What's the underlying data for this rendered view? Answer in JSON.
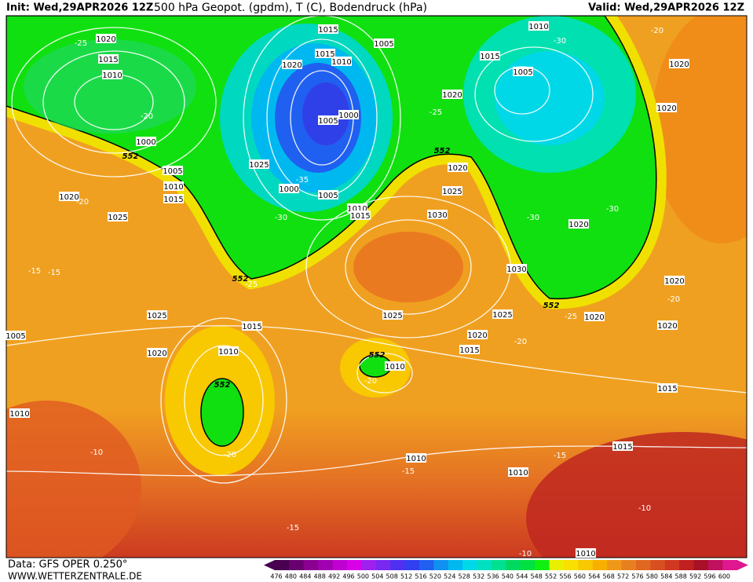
{
  "header": {
    "init": "Init: Wed,29APR2026 12Z",
    "title": "500 hPa Geopot. (gpdm), T (C), Bodendruck (hPa)",
    "valid": "Valid: Wed,29APR2026 12Z"
  },
  "footer": {
    "data": "Data: GFS OPER 0.250°",
    "url": "WWW.WETTERZENTRALE.DE"
  },
  "colorbar": {
    "ticks": [
      476,
      480,
      484,
      488,
      492,
      496,
      500,
      504,
      508,
      512,
      516,
      520,
      524,
      528,
      532,
      536,
      540,
      544,
      548,
      552,
      556,
      560,
      564,
      568,
      572,
      576,
      580,
      584,
      588,
      592,
      596,
      600
    ],
    "colors": [
      "#4a0050",
      "#6a0070",
      "#8a0090",
      "#a000b0",
      "#c000d0",
      "#d800e8",
      "#a020f0",
      "#7828f0",
      "#5030f0",
      "#3040f0",
      "#2060f0",
      "#1090f0",
      "#00b8f0",
      "#00d8e8",
      "#00e0c0",
      "#00e090",
      "#00d860",
      "#00e040",
      "#10f010",
      "#e8f000",
      "#f8e000",
      "#f8c800",
      "#f8b000",
      "#f09818",
      "#e88020",
      "#e06820",
      "#d85020",
      "#d03820",
      "#c02020",
      "#a81028",
      "#c01060",
      "#e01890"
    ]
  },
  "map": {
    "isobar_labels": [
      "1020",
      "1015",
      "1010",
      "1000",
      "1005",
      "1010",
      "1015",
      "1020",
      "1025",
      "1015",
      "1015",
      "1010",
      "1020",
      "1005",
      "1005",
      "1000",
      "1025",
      "1000",
      "1005",
      "1010",
      "1015",
      "1030",
      "1020",
      "1025",
      "1010",
      "1015",
      "1005",
      "1020",
      "1020",
      "1020",
      "1020",
      "1030",
      "1020",
      "1025",
      "1015",
      "1010",
      "1020",
      "1005",
      "1010",
      "1025",
      "1025",
      "1020",
      "1020",
      "1015",
      "1010",
      "1015",
      "1015",
      "1010",
      "1010",
      "1010",
      "1020"
    ],
    "temperature_labels": [
      "-25",
      "-20",
      "-25",
      "-30",
      "-20",
      "-35",
      "-30",
      "-20",
      "-15",
      "-15",
      "-25",
      "-30",
      "-30",
      "-25",
      "-20",
      "-20",
      "-20",
      "-20",
      "-10",
      "-15",
      "-15",
      "-10",
      "-15",
      "-10"
    ],
    "height_labels": [
      "552",
      "552",
      "552",
      "552",
      "552",
      "552"
    ]
  }
}
